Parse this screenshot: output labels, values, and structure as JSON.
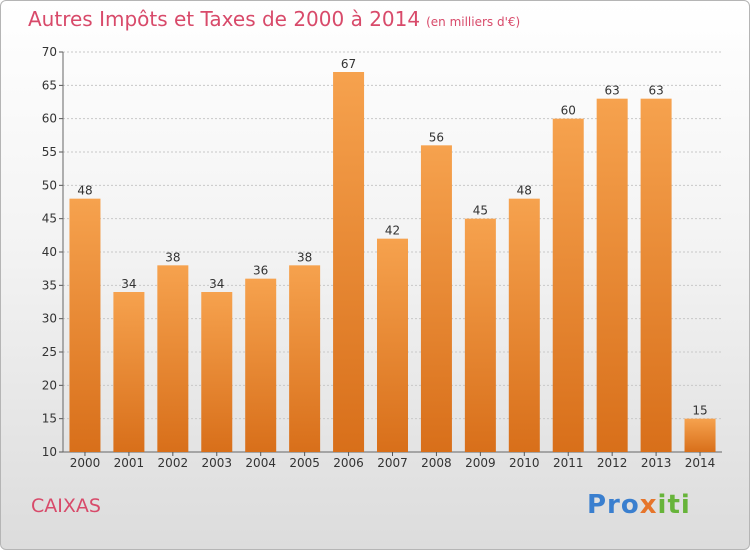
{
  "title": "Autres Impôts et Taxes de 2000 à 2014",
  "unit_note": "(en milliers d'€)",
  "commune": "CAIXAS",
  "logo": {
    "part1": "Pro",
    "part2": "x",
    "part3": "iti"
  },
  "colors": {
    "bar_light": "#f6a24e",
    "bar_dark": "#d86f1a",
    "title": "#d84a6a",
    "grid": "#c8c8c8"
  },
  "chart_data": {
    "type": "bar",
    "categories": [
      "2000",
      "2001",
      "2002",
      "2003",
      "2004",
      "2005",
      "2006",
      "2007",
      "2008",
      "2009",
      "2010",
      "2011",
      "2012",
      "2013",
      "2014"
    ],
    "values": [
      48,
      34,
      38,
      34,
      36,
      38,
      67,
      42,
      56,
      45,
      48,
      60,
      63,
      63,
      15
    ],
    "ylim": [
      10,
      70
    ],
    "yticks": [
      10,
      15,
      20,
      25,
      30,
      35,
      40,
      45,
      50,
      55,
      60,
      65,
      70
    ],
    "grid": true,
    "data_labels": true
  }
}
